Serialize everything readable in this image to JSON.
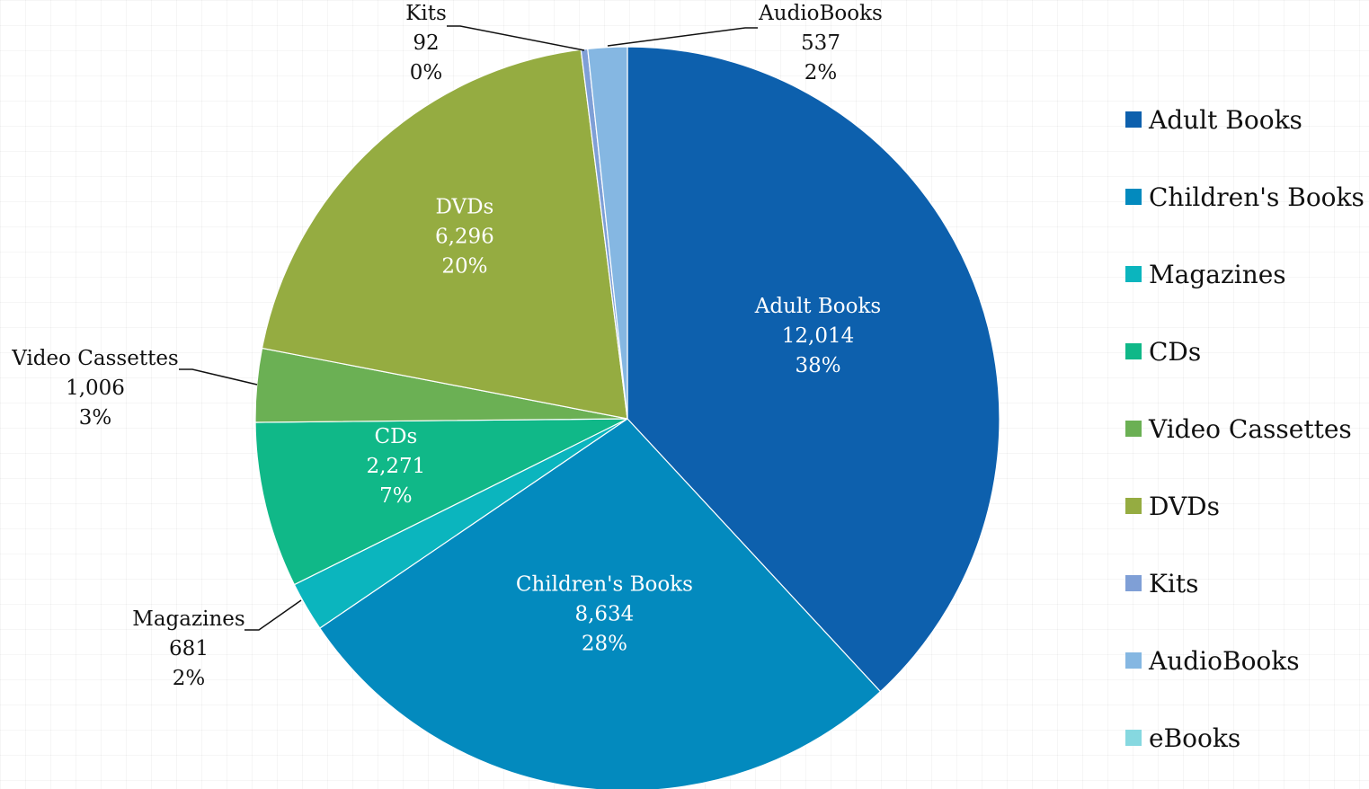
{
  "chart_data": {
    "type": "pie",
    "title": "",
    "slices": [
      {
        "name": "Adult Books",
        "value": 12014,
        "value_label": "12,014",
        "percent_label": "38%",
        "color": "#0D60AD",
        "label_position": "inside"
      },
      {
        "name": "Children's Books",
        "value": 8634,
        "value_label": "8,634",
        "percent_label": "28%",
        "color": "#038ABE",
        "label_position": "inside"
      },
      {
        "name": "Magazines",
        "value": 681,
        "value_label": "681",
        "percent_label": "2%",
        "color": "#0BB5BE",
        "label_position": "outside"
      },
      {
        "name": "CDs",
        "value": 2271,
        "value_label": "2,271",
        "percent_label": "7%",
        "color": "#10B888",
        "label_position": "inside"
      },
      {
        "name": "Video Cassettes",
        "value": 1006,
        "value_label": "1,006",
        "percent_label": "3%",
        "color": "#6BB054",
        "label_position": "outside"
      },
      {
        "name": "DVDs",
        "value": 6296,
        "value_label": "6,296",
        "percent_label": "20%",
        "color": "#95AC41",
        "label_position": "inside"
      },
      {
        "name": "Kits",
        "value": 92,
        "value_label": "92",
        "percent_label": "0%",
        "color": "#7F9FD6",
        "label_position": "outside"
      },
      {
        "name": "AudioBooks",
        "value": 537,
        "value_label": "537",
        "percent_label": "2%",
        "color": "#85B7E2",
        "label_position": "outside"
      },
      {
        "name": "eBooks",
        "value": 0,
        "value_label": "",
        "percent_label": "",
        "color": "#86D8E0",
        "label_position": "none"
      }
    ],
    "legend_position": "right"
  }
}
